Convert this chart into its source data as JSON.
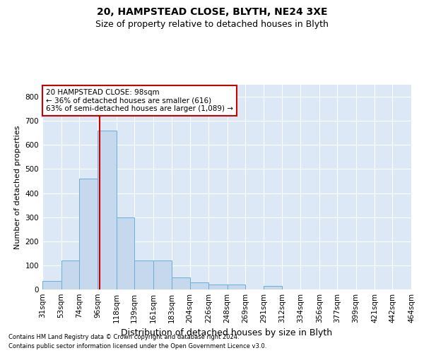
{
  "title": "20, HAMPSTEAD CLOSE, BLYTH, NE24 3XE",
  "subtitle": "Size of property relative to detached houses in Blyth",
  "xlabel": "Distribution of detached houses by size in Blyth",
  "ylabel": "Number of detached properties",
  "footer_line1": "Contains HM Land Registry data © Crown copyright and database right 2024.",
  "footer_line2": "Contains public sector information licensed under the Open Government Licence v3.0.",
  "property_size": 98,
  "annotation_text_line1": "20 HAMPSTEAD CLOSE: 98sqm",
  "annotation_text_line2": "← 36% of detached houses are smaller (616)",
  "annotation_text_line3": "63% of semi-detached houses are larger (1,089) →",
  "bar_color": "#c5d8ee",
  "bar_edge_color": "#6baed6",
  "red_line_color": "#cc0000",
  "annotation_box_edge_color": "#cc0000",
  "background_color": "#dce8f5",
  "bins_left": [
    31,
    53,
    74,
    96,
    118,
    139,
    161,
    183,
    204,
    226,
    248,
    269,
    291,
    312,
    334,
    356,
    377,
    399,
    421,
    442
  ],
  "bins_right": [
    53,
    74,
    96,
    118,
    139,
    161,
    183,
    204,
    226,
    248,
    269,
    291,
    312,
    334,
    356,
    377,
    399,
    421,
    442,
    464
  ],
  "counts": [
    35,
    120,
    460,
    660,
    300,
    120,
    120,
    50,
    30,
    20,
    20,
    0,
    15,
    0,
    0,
    0,
    0,
    0,
    0,
    0
  ],
  "xlim_left": 31,
  "xlim_right": 464,
  "ylim": [
    0,
    850
  ],
  "yticks": [
    0,
    100,
    200,
    300,
    400,
    500,
    600,
    700,
    800
  ],
  "xtick_labels": [
    "31sqm",
    "53sqm",
    "74sqm",
    "96sqm",
    "118sqm",
    "139sqm",
    "161sqm",
    "183sqm",
    "204sqm",
    "226sqm",
    "248sqm",
    "269sqm",
    "291sqm",
    "312sqm",
    "334sqm",
    "356sqm",
    "377sqm",
    "399sqm",
    "421sqm",
    "442sqm",
    "464sqm"
  ],
  "xtick_positions": [
    31,
    53,
    74,
    96,
    118,
    139,
    161,
    183,
    204,
    226,
    248,
    269,
    291,
    312,
    334,
    356,
    377,
    399,
    421,
    442,
    464
  ],
  "grid_color": "#ffffff",
  "title_fontsize": 10,
  "subtitle_fontsize": 9,
  "ylabel_fontsize": 8,
  "xlabel_fontsize": 9,
  "tick_fontsize": 7.5,
  "annotation_fontsize": 7.5,
  "footer_fontsize": 6
}
